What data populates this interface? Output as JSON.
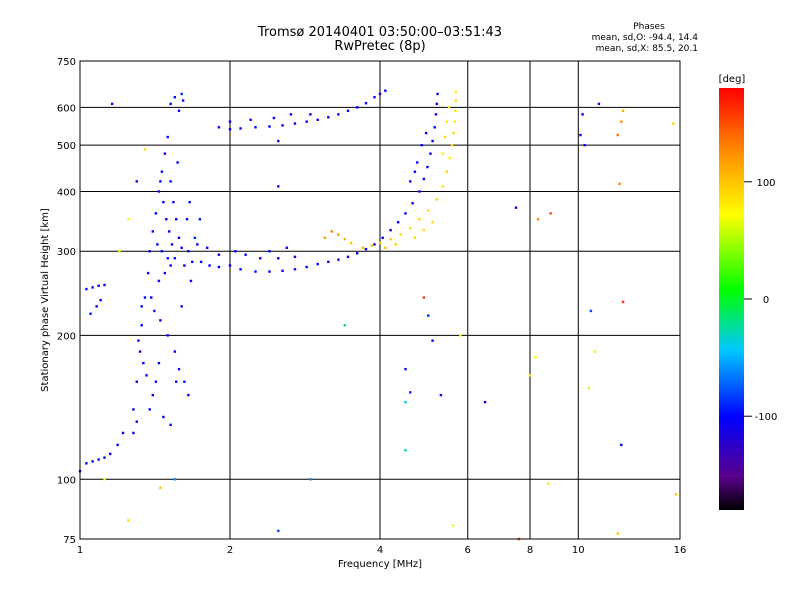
{
  "header": {
    "title_line1": "Tromsø 20140401 03:50:00–03:51:43",
    "title_line2": "RwPretec (8p)",
    "phase_heading": "Phases",
    "phase_o": "mean, sd,O: -94.4, 14.4",
    "phase_x": "mean, sd,X: 85.5, 20.1"
  },
  "chart_data": {
    "type": "scatter",
    "xlabel": "Frequency [MHz]",
    "ylabel": "Stationary phase Virtual Height [km]",
    "xscale": "log",
    "yscale": "log",
    "xlim": [
      1,
      16
    ],
    "ylim": [
      75,
      750
    ],
    "xticks": [
      1,
      2,
      4,
      6,
      8,
      10,
      16
    ],
    "yticks": [
      75,
      100,
      200,
      300,
      400,
      500,
      600,
      750
    ],
    "grid_x": [
      2,
      4,
      6,
      8,
      10
    ],
    "grid_y": [
      100,
      200,
      300,
      400,
      500,
      600
    ],
    "colorbar": {
      "label": "[deg]",
      "ticks": [
        100,
        0,
        -100
      ],
      "range": [
        -180,
        180
      ],
      "colormap": "rainbow"
    },
    "points": [
      {
        "x": 1.0,
        "y": 104,
        "p": -100
      },
      {
        "x": 1.03,
        "y": 108,
        "p": -100
      },
      {
        "x": 1.06,
        "y": 109,
        "p": -105
      },
      {
        "x": 1.09,
        "y": 110,
        "p": -100
      },
      {
        "x": 1.12,
        "y": 111,
        "p": -98
      },
      {
        "x": 1.15,
        "y": 113,
        "p": -102
      },
      {
        "x": 1.19,
        "y": 118,
        "p": -100
      },
      {
        "x": 1.22,
        "y": 125,
        "p": -100
      },
      {
        "x": 1.03,
        "y": 250,
        "p": -100
      },
      {
        "x": 1.06,
        "y": 252,
        "p": -100
      },
      {
        "x": 1.09,
        "y": 254,
        "p": -100
      },
      {
        "x": 1.12,
        "y": 255,
        "p": -100
      },
      {
        "x": 1.05,
        "y": 222,
        "p": -95
      },
      {
        "x": 1.08,
        "y": 230,
        "p": -100
      },
      {
        "x": 1.1,
        "y": 237,
        "p": -100
      },
      {
        "x": 1.28,
        "y": 140,
        "p": -100
      },
      {
        "x": 1.3,
        "y": 160,
        "p": -100
      },
      {
        "x": 1.32,
        "y": 185,
        "p": -100
      },
      {
        "x": 1.33,
        "y": 210,
        "p": -100
      },
      {
        "x": 1.35,
        "y": 240,
        "p": -100
      },
      {
        "x": 1.37,
        "y": 270,
        "p": -100
      },
      {
        "x": 1.38,
        "y": 300,
        "p": -100
      },
      {
        "x": 1.31,
        "y": 195,
        "p": -100
      },
      {
        "x": 1.34,
        "y": 175,
        "p": -100
      },
      {
        "x": 1.36,
        "y": 165,
        "p": -100
      },
      {
        "x": 1.4,
        "y": 150,
        "p": -100
      },
      {
        "x": 1.42,
        "y": 160,
        "p": -100
      },
      {
        "x": 1.44,
        "y": 175,
        "p": -100
      },
      {
        "x": 1.33,
        "y": 230,
        "p": -100
      },
      {
        "x": 1.4,
        "y": 330,
        "p": -100
      },
      {
        "x": 1.42,
        "y": 360,
        "p": -100
      },
      {
        "x": 1.44,
        "y": 400,
        "p": -100
      },
      {
        "x": 1.46,
        "y": 440,
        "p": -100
      },
      {
        "x": 1.48,
        "y": 480,
        "p": -100
      },
      {
        "x": 1.5,
        "y": 520,
        "p": -100
      },
      {
        "x": 1.45,
        "y": 420,
        "p": -100
      },
      {
        "x": 1.47,
        "y": 380,
        "p": -100
      },
      {
        "x": 1.49,
        "y": 350,
        "p": -100
      },
      {
        "x": 1.51,
        "y": 330,
        "p": -100
      },
      {
        "x": 1.53,
        "y": 310,
        "p": -100
      },
      {
        "x": 1.55,
        "y": 290,
        "p": -100
      },
      {
        "x": 1.43,
        "y": 310,
        "p": -100
      },
      {
        "x": 1.46,
        "y": 300,
        "p": -100
      },
      {
        "x": 1.5,
        "y": 290,
        "p": -100
      },
      {
        "x": 1.52,
        "y": 280,
        "p": -100
      },
      {
        "x": 1.48,
        "y": 270,
        "p": -100
      },
      {
        "x": 1.44,
        "y": 260,
        "p": -100
      },
      {
        "x": 1.39,
        "y": 240,
        "p": -100
      },
      {
        "x": 1.41,
        "y": 225,
        "p": -100
      },
      {
        "x": 1.45,
        "y": 215,
        "p": -100
      },
      {
        "x": 1.5,
        "y": 200,
        "p": -100
      },
      {
        "x": 1.55,
        "y": 185,
        "p": -100
      },
      {
        "x": 1.58,
        "y": 170,
        "p": -100
      },
      {
        "x": 1.62,
        "y": 160,
        "p": -100
      },
      {
        "x": 1.65,
        "y": 150,
        "p": -100
      },
      {
        "x": 1.52,
        "y": 420,
        "p": -100
      },
      {
        "x": 1.54,
        "y": 380,
        "p": -100
      },
      {
        "x": 1.56,
        "y": 350,
        "p": -100
      },
      {
        "x": 1.58,
        "y": 320,
        "p": -100
      },
      {
        "x": 1.6,
        "y": 305,
        "p": -100
      },
      {
        "x": 1.57,
        "y": 460,
        "p": -100
      },
      {
        "x": 1.58,
        "y": 590,
        "p": -100
      },
      {
        "x": 1.61,
        "y": 620,
        "p": -100
      },
      {
        "x": 1.6,
        "y": 640,
        "p": -90
      },
      {
        "x": 1.62,
        "y": 280,
        "p": -100
      },
      {
        "x": 1.68,
        "y": 285,
        "p": -100
      },
      {
        "x": 1.75,
        "y": 285,
        "p": -100
      },
      {
        "x": 1.82,
        "y": 280,
        "p": -100
      },
      {
        "x": 1.9,
        "y": 278,
        "p": -100
      },
      {
        "x": 2.0,
        "y": 280,
        "p": -100
      },
      {
        "x": 1.65,
        "y": 300,
        "p": -100
      },
      {
        "x": 1.72,
        "y": 310,
        "p": -100
      },
      {
        "x": 1.8,
        "y": 305,
        "p": -100
      },
      {
        "x": 1.9,
        "y": 295,
        "p": -100
      },
      {
        "x": 2.05,
        "y": 300,
        "p": -100
      },
      {
        "x": 2.15,
        "y": 295,
        "p": -100
      },
      {
        "x": 2.1,
        "y": 275,
        "p": -100
      },
      {
        "x": 2.25,
        "y": 272,
        "p": -100
      },
      {
        "x": 2.4,
        "y": 272,
        "p": -100
      },
      {
        "x": 2.55,
        "y": 273,
        "p": -100
      },
      {
        "x": 2.7,
        "y": 275,
        "p": -100
      },
      {
        "x": 2.85,
        "y": 278,
        "p": -100
      },
      {
        "x": 2.3,
        "y": 290,
        "p": -100
      },
      {
        "x": 2.5,
        "y": 290,
        "p": -100
      },
      {
        "x": 2.7,
        "y": 292,
        "p": -100
      },
      {
        "x": 2.6,
        "y": 305,
        "p": -100
      },
      {
        "x": 2.4,
        "y": 300,
        "p": -100
      },
      {
        "x": 3.0,
        "y": 282,
        "p": -100
      },
      {
        "x": 3.15,
        "y": 285,
        "p": -110
      },
      {
        "x": 3.3,
        "y": 288,
        "p": -120
      },
      {
        "x": 3.45,
        "y": 292,
        "p": -115
      },
      {
        "x": 3.6,
        "y": 297,
        "p": -110
      },
      {
        "x": 3.75,
        "y": 303,
        "p": -105
      },
      {
        "x": 3.9,
        "y": 310,
        "p": -100
      },
      {
        "x": 4.05,
        "y": 320,
        "p": -100
      },
      {
        "x": 4.2,
        "y": 332,
        "p": -100
      },
      {
        "x": 4.35,
        "y": 345,
        "p": -100
      },
      {
        "x": 4.5,
        "y": 360,
        "p": -100
      },
      {
        "x": 4.65,
        "y": 378,
        "p": -100
      },
      {
        "x": 4.8,
        "y": 400,
        "p": -100
      },
      {
        "x": 4.9,
        "y": 425,
        "p": -100
      },
      {
        "x": 4.98,
        "y": 450,
        "p": -100
      },
      {
        "x": 5.05,
        "y": 480,
        "p": -100
      },
      {
        "x": 5.1,
        "y": 510,
        "p": -100
      },
      {
        "x": 5.15,
        "y": 545,
        "p": -100
      },
      {
        "x": 5.18,
        "y": 580,
        "p": -100
      },
      {
        "x": 5.2,
        "y": 610,
        "p": -100
      },
      {
        "x": 5.22,
        "y": 640,
        "p": -100
      },
      {
        "x": 4.6,
        "y": 420,
        "p": -100
      },
      {
        "x": 4.7,
        "y": 440,
        "p": -100
      },
      {
        "x": 4.75,
        "y": 460,
        "p": -100
      },
      {
        "x": 4.85,
        "y": 500,
        "p": -100
      },
      {
        "x": 4.95,
        "y": 530,
        "p": -100
      },
      {
        "x": 1.9,
        "y": 545,
        "p": -100
      },
      {
        "x": 2.0,
        "y": 540,
        "p": -100
      },
      {
        "x": 2.1,
        "y": 542,
        "p": -100
      },
      {
        "x": 2.25,
        "y": 545,
        "p": -100
      },
      {
        "x": 2.4,
        "y": 547,
        "p": -100
      },
      {
        "x": 2.55,
        "y": 550,
        "p": -100
      },
      {
        "x": 2.7,
        "y": 555,
        "p": -100
      },
      {
        "x": 2.85,
        "y": 560,
        "p": -110
      },
      {
        "x": 3.0,
        "y": 565,
        "p": -120
      },
      {
        "x": 3.15,
        "y": 572,
        "p": -100
      },
      {
        "x": 3.3,
        "y": 580,
        "p": -100
      },
      {
        "x": 3.45,
        "y": 590,
        "p": -100
      },
      {
        "x": 3.6,
        "y": 600,
        "p": -100
      },
      {
        "x": 3.75,
        "y": 612,
        "p": -100
      },
      {
        "x": 3.9,
        "y": 630,
        "p": -100
      },
      {
        "x": 4.0,
        "y": 640,
        "p": -100
      },
      {
        "x": 4.1,
        "y": 650,
        "p": -100
      },
      {
        "x": 2.0,
        "y": 560,
        "p": -100
      },
      {
        "x": 2.2,
        "y": 565,
        "p": -100
      },
      {
        "x": 2.45,
        "y": 570,
        "p": -100
      },
      {
        "x": 2.65,
        "y": 580,
        "p": -100
      },
      {
        "x": 2.9,
        "y": 580,
        "p": -110
      },
      {
        "x": 3.2,
        "y": 330,
        "p": 130
      },
      {
        "x": 3.3,
        "y": 325,
        "p": 120
      },
      {
        "x": 3.4,
        "y": 318,
        "p": 110
      },
      {
        "x": 3.1,
        "y": 320,
        "p": 120
      },
      {
        "x": 3.5,
        "y": 312,
        "p": 100
      },
      {
        "x": 3.7,
        "y": 305,
        "p": 110
      },
      {
        "x": 3.85,
        "y": 308,
        "p": 100
      },
      {
        "x": 4.0,
        "y": 312,
        "p": 100
      },
      {
        "x": 4.2,
        "y": 318,
        "p": 95
      },
      {
        "x": 4.4,
        "y": 325,
        "p": 90
      },
      {
        "x": 4.6,
        "y": 335,
        "p": 85
      },
      {
        "x": 4.8,
        "y": 350,
        "p": 90
      },
      {
        "x": 5.0,
        "y": 365,
        "p": 85
      },
      {
        "x": 5.2,
        "y": 385,
        "p": 90
      },
      {
        "x": 5.35,
        "y": 410,
        "p": 85
      },
      {
        "x": 5.45,
        "y": 440,
        "p": 90
      },
      {
        "x": 5.52,
        "y": 470,
        "p": 80
      },
      {
        "x": 5.58,
        "y": 500,
        "p": 85
      },
      {
        "x": 5.62,
        "y": 530,
        "p": 90
      },
      {
        "x": 5.65,
        "y": 560,
        "p": 80
      },
      {
        "x": 5.67,
        "y": 590,
        "p": 85
      },
      {
        "x": 5.68,
        "y": 620,
        "p": 90
      },
      {
        "x": 5.68,
        "y": 645,
        "p": 80
      },
      {
        "x": 5.5,
        "y": 600,
        "p": 80
      },
      {
        "x": 5.45,
        "y": 560,
        "p": 85
      },
      {
        "x": 5.4,
        "y": 520,
        "p": 90
      },
      {
        "x": 5.35,
        "y": 480,
        "p": 80
      },
      {
        "x": 4.7,
        "y": 320,
        "p": 90
      },
      {
        "x": 4.9,
        "y": 332,
        "p": 85
      },
      {
        "x": 5.1,
        "y": 345,
        "p": 90
      },
      {
        "x": 4.3,
        "y": 310,
        "p": 95
      },
      {
        "x": 4.1,
        "y": 305,
        "p": 100
      },
      {
        "x": 1.16,
        "y": 610,
        "p": -100
      },
      {
        "x": 1.3,
        "y": 420,
        "p": -100
      },
      {
        "x": 1.25,
        "y": 350,
        "p": 70
      },
      {
        "x": 1.2,
        "y": 300,
        "p": 60
      },
      {
        "x": 1.35,
        "y": 490,
        "p": 90
      },
      {
        "x": 1.12,
        "y": 100,
        "p": 80
      },
      {
        "x": 1.25,
        "y": 82,
        "p": 90
      },
      {
        "x": 1.45,
        "y": 96,
        "p": 100
      },
      {
        "x": 1.55,
        "y": 100,
        "p": -60
      },
      {
        "x": 2.5,
        "y": 78,
        "p": -80
      },
      {
        "x": 2.5,
        "y": 410,
        "p": -100
      },
      {
        "x": 2.5,
        "y": 510,
        "p": -100
      },
      {
        "x": 2.9,
        "y": 100,
        "p": -60
      },
      {
        "x": 3.4,
        "y": 210,
        "p": -30
      },
      {
        "x": 4.5,
        "y": 170,
        "p": -100
      },
      {
        "x": 4.6,
        "y": 152,
        "p": -90
      },
      {
        "x": 4.5,
        "y": 145,
        "p": -40
      },
      {
        "x": 4.5,
        "y": 115,
        "p": -20
      },
      {
        "x": 4.9,
        "y": 240,
        "p": 160
      },
      {
        "x": 5.0,
        "y": 220,
        "p": -90
      },
      {
        "x": 5.1,
        "y": 195,
        "p": -100
      },
      {
        "x": 5.3,
        "y": 150,
        "p": -100
      },
      {
        "x": 5.6,
        "y": 80,
        "p": 70
      },
      {
        "x": 5.8,
        "y": 200,
        "p": 70
      },
      {
        "x": 6.5,
        "y": 145,
        "p": -100
      },
      {
        "x": 7.5,
        "y": 370,
        "p": -100
      },
      {
        "x": 7.6,
        "y": 75,
        "p": 150
      },
      {
        "x": 8.0,
        "y": 165,
        "p": 80
      },
      {
        "x": 8.2,
        "y": 180,
        "p": 70
      },
      {
        "x": 8.3,
        "y": 350,
        "p": 120
      },
      {
        "x": 8.8,
        "y": 360,
        "p": 150
      },
      {
        "x": 8.7,
        "y": 98,
        "p": 80
      },
      {
        "x": 10.2,
        "y": 580,
        "p": -100
      },
      {
        "x": 10.1,
        "y": 525,
        "p": -100
      },
      {
        "x": 10.3,
        "y": 500,
        "p": -100
      },
      {
        "x": 10.5,
        "y": 155,
        "p": 60
      },
      {
        "x": 10.8,
        "y": 185,
        "p": 80
      },
      {
        "x": 10.6,
        "y": 225,
        "p": -80
      },
      {
        "x": 11.0,
        "y": 610,
        "p": -100
      },
      {
        "x": 12.3,
        "y": 590,
        "p": 110
      },
      {
        "x": 12.2,
        "y": 560,
        "p": 120
      },
      {
        "x": 12.0,
        "y": 525,
        "p": 140
      },
      {
        "x": 12.1,
        "y": 415,
        "p": 130
      },
      {
        "x": 12.3,
        "y": 235,
        "p": 160
      },
      {
        "x": 12.2,
        "y": 118,
        "p": -100
      },
      {
        "x": 12.0,
        "y": 77,
        "p": 100
      },
      {
        "x": 15.5,
        "y": 555,
        "p": 90
      },
      {
        "x": 15.7,
        "y": 93,
        "p": 100
      },
      {
        "x": 1.7,
        "y": 320,
        "p": -90
      },
      {
        "x": 1.74,
        "y": 350,
        "p": -95
      },
      {
        "x": 1.66,
        "y": 380,
        "p": -100
      },
      {
        "x": 1.64,
        "y": 350,
        "p": -100
      },
      {
        "x": 1.67,
        "y": 260,
        "p": -100
      },
      {
        "x": 1.6,
        "y": 230,
        "p": -100
      },
      {
        "x": 1.28,
        "y": 125,
        "p": -100
      },
      {
        "x": 1.3,
        "y": 132,
        "p": -100
      },
      {
        "x": 1.38,
        "y": 140,
        "p": -100
      },
      {
        "x": 1.47,
        "y": 135,
        "p": -100
      },
      {
        "x": 1.52,
        "y": 130,
        "p": -100
      },
      {
        "x": 1.56,
        "y": 160,
        "p": -100
      },
      {
        "x": 1.52,
        "y": 610,
        "p": -100
      },
      {
        "x": 1.55,
        "y": 630,
        "p": -100
      }
    ]
  }
}
